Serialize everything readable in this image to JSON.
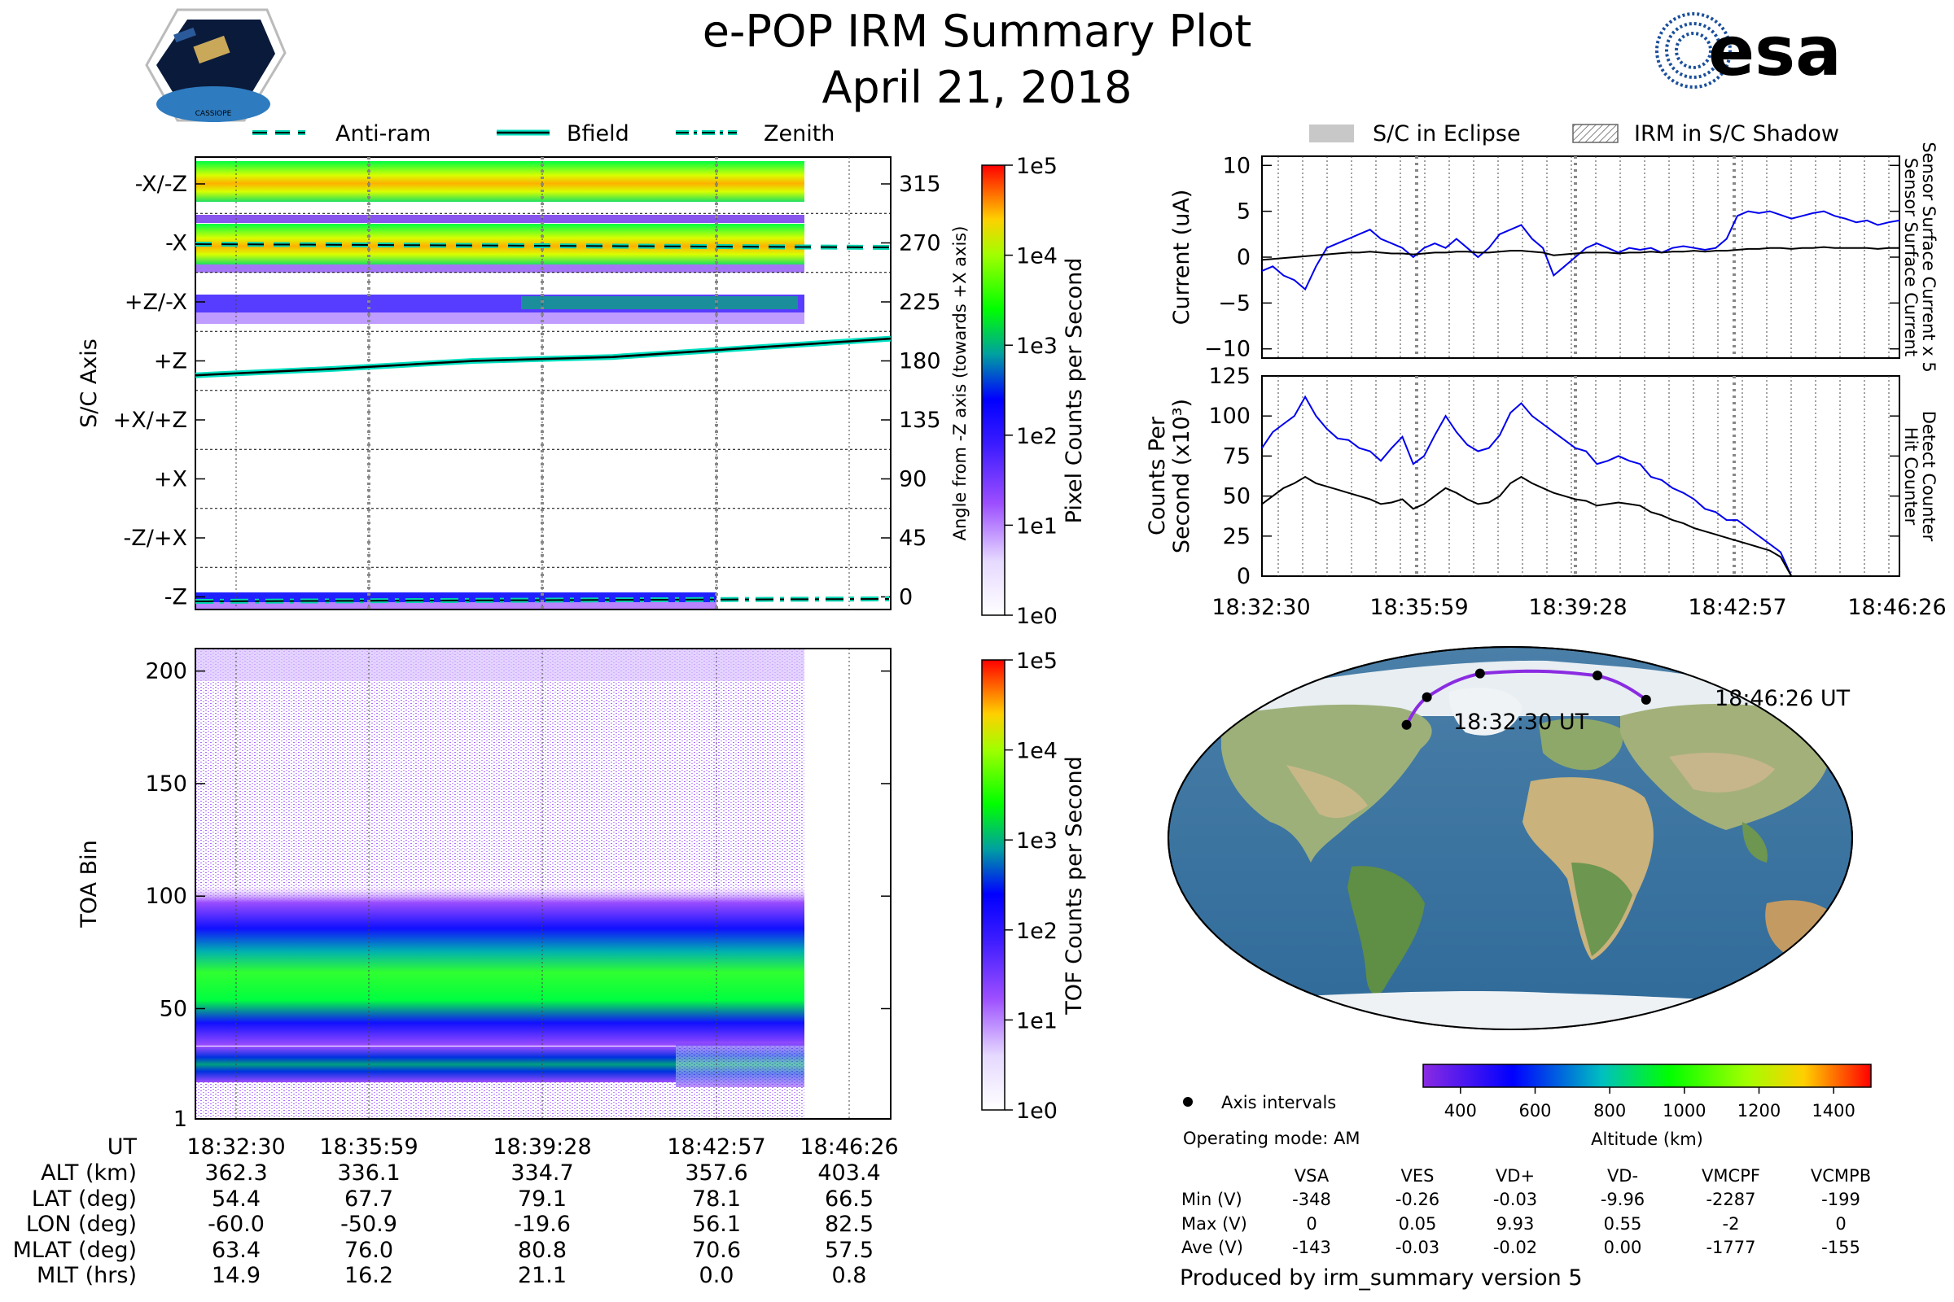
{
  "header": {
    "title": "e-POP IRM Summary Plot",
    "date": "April 21, 2018",
    "left_logo_text": "CASSIOPE",
    "right_logo_text": "esa"
  },
  "colors": {
    "anti_ram": "#00d4b0",
    "bfield_outline": "#00e0c0",
    "zenith": "#00d4b0",
    "blue_line": "#0000ee",
    "black_line": "#000000",
    "track": "#8a2be2",
    "label_blue": "#0000cc"
  },
  "chart_data": [
    {
      "id": "sc_axis_spectrogram",
      "type": "heatmap",
      "legend": [
        {
          "label": "Anti-ram",
          "style": "dashed"
        },
        {
          "label": "Bfield",
          "style": "solid"
        },
        {
          "label": "Zenith",
          "style": "dashdot"
        }
      ],
      "ylabel": "S/C Axis",
      "y2label": "Angle from -Z axis (towards +X axis)",
      "y_categories": [
        "-X/-Z",
        "-X",
        "+Z/-X",
        "+Z",
        "+X/+Z",
        "+X",
        "-Z/+X",
        "-Z"
      ],
      "y2_ticks": [
        "315",
        "270",
        "225",
        "180",
        "135",
        "90",
        "45",
        "0"
      ],
      "y2_range": [
        0,
        345
      ],
      "x_tick_count": 5,
      "bfield_angle_deg": [
        169,
        174,
        180,
        183,
        190,
        197
      ],
      "anti_ram_angle_deg": 267,
      "zenith_angle_deg": 0,
      "colorbar": {
        "label": "Pixel Counts per Second",
        "ticks": [
          "1e5",
          "1e4",
          "1e3",
          "1e2",
          "1e1",
          "1e0"
        ]
      }
    },
    {
      "id": "toa_spectrogram",
      "type": "heatmap",
      "ylabel": "TOA Bin",
      "y_ticks": [
        "200",
        "150",
        "100",
        "50",
        "1"
      ],
      "y_range": [
        1,
        210
      ],
      "bands": [
        {
          "name": "main",
          "center": 65,
          "width": 30
        },
        {
          "name": "low",
          "center": 25,
          "width": 10
        }
      ],
      "colorbar": {
        "label": "TOF Counts per Second",
        "ticks": [
          "1e5",
          "1e4",
          "1e3",
          "1e2",
          "1e1",
          "1e0"
        ]
      }
    },
    {
      "id": "sensor_current",
      "type": "line",
      "legend": [
        {
          "label": "S/C in Eclipse",
          "style": "solid-fill"
        },
        {
          "label": "IRM in S/C Shadow",
          "style": "hatched"
        }
      ],
      "ylabel": "Current (uA)",
      "ylim": [
        -11,
        11
      ],
      "y_ticks": [
        "10",
        "5",
        "0",
        "−5",
        "−10"
      ],
      "right_label_blue": "Sensor Surface Current x 5",
      "right_label_black": "Sensor Surface Current",
      "series": [
        {
          "name": "Sensor Surface Current x 5",
          "color": "blue",
          "values": [
            -1.5,
            -1,
            -2,
            -2.5,
            -3.5,
            -1,
            1,
            1.5,
            2,
            2.5,
            3,
            2,
            1.5,
            1,
            0,
            1,
            1.5,
            1,
            2,
            1,
            0,
            1,
            2.5,
            3,
            3.5,
            2,
            1,
            -2,
            -1,
            0,
            1,
            1.5,
            1,
            0.5,
            1,
            0.8,
            1,
            0.5,
            1,
            1.2,
            1,
            0.8,
            1,
            2,
            4.5,
            5,
            4.8,
            5,
            4.6,
            4.2,
            4.5,
            4.8,
            5,
            4.5,
            4.2,
            3.8,
            4,
            3.5,
            3.8,
            4
          ]
        },
        {
          "name": "Sensor Surface Current",
          "color": "black",
          "values": [
            -0.3,
            -0.2,
            -0.1,
            0,
            0.1,
            0.2,
            0.3,
            0.4,
            0.5,
            0.5,
            0.6,
            0.5,
            0.4,
            0.4,
            0.3,
            0.4,
            0.5,
            0.5,
            0.6,
            0.6,
            0.5,
            0.5,
            0.6,
            0.7,
            0.7,
            0.6,
            0.5,
            0.2,
            0.3,
            0.4,
            0.5,
            0.5,
            0.5,
            0.4,
            0.5,
            0.5,
            0.6,
            0.5,
            0.6,
            0.6,
            0.7,
            0.6,
            0.7,
            0.7,
            0.8,
            0.9,
            0.9,
            1,
            1,
            0.9,
            1,
            1,
            1.1,
            1,
            1,
            1,
            1,
            0.9,
            1,
            1
          ]
        }
      ]
    },
    {
      "id": "detector_counts",
      "type": "line",
      "ylabel": "Counts Per Second (x10³)",
      "ylabel_line1": "Counts Per",
      "ylabel_line2": "Second (x10³)",
      "ylim": [
        0,
        125
      ],
      "y_ticks": [
        "125",
        "100",
        "75",
        "50",
        "25",
        "0"
      ],
      "right_label_blue": "Detect Counter",
      "right_label_black": "Hit Counter",
      "x_ticks": [
        "18:32:30",
        "18:35:59",
        "18:39:28",
        "18:42:57",
        "18:46:26"
      ],
      "series": [
        {
          "name": "Detect Counter",
          "color": "blue",
          "values": [
            80,
            90,
            95,
            100,
            112,
            100,
            92,
            86,
            85,
            80,
            78,
            72,
            80,
            87,
            70,
            75,
            88,
            100,
            90,
            82,
            78,
            80,
            88,
            102,
            108,
            100,
            95,
            90,
            85,
            80,
            78,
            70,
            72,
            75,
            72,
            70,
            62,
            60,
            55,
            52,
            48,
            42,
            40,
            35,
            35,
            30,
            25,
            20,
            15,
            0,
            0,
            0,
            0,
            0,
            0,
            0,
            0,
            0,
            0,
            0
          ]
        },
        {
          "name": "Hit Counter",
          "color": "black",
          "values": [
            45,
            50,
            55,
            58,
            62,
            58,
            56,
            54,
            52,
            50,
            48,
            45,
            46,
            48,
            42,
            45,
            50,
            55,
            52,
            48,
            45,
            46,
            50,
            58,
            62,
            58,
            55,
            52,
            50,
            48,
            47,
            44,
            45,
            46,
            45,
            44,
            40,
            38,
            35,
            33,
            30,
            28,
            26,
            24,
            22,
            20,
            18,
            16,
            12,
            0,
            0,
            0,
            0,
            0,
            0,
            0,
            0,
            0,
            0,
            0
          ]
        }
      ]
    },
    {
      "id": "orbit_map",
      "type": "scatter",
      "start_label": "18:32:30 UT",
      "end_label": "18:46:26 UT",
      "track_lonlat": [
        [
          -60.0,
          54.4
        ],
        [
          -50.9,
          67.7
        ],
        [
          -19.6,
          79.1
        ],
        [
          56.1,
          78.1
        ],
        [
          82.5,
          66.5
        ]
      ],
      "legend_label": "Axis intervals",
      "operating_mode": "Operating mode: AM",
      "altitude_bar": {
        "label": "Altitude (km)",
        "ticks": [
          "400",
          "600",
          "800",
          "1000",
          "1200",
          "1400"
        ],
        "range": [
          300,
          1500
        ]
      }
    }
  ],
  "ut_table": {
    "rows": [
      {
        "label": "UT",
        "values": [
          "18:32:30",
          "18:35:59",
          "18:39:28",
          "18:42:57",
          "18:46:26"
        ]
      },
      {
        "label": "ALT (km)",
        "values": [
          "362.3",
          "336.1",
          "334.7",
          "357.6",
          "403.4"
        ]
      },
      {
        "label": "LAT (deg)",
        "values": [
          "54.4",
          "67.7",
          "79.1",
          "78.1",
          "66.5"
        ]
      },
      {
        "label": "LON (deg)",
        "values": [
          "-60.0",
          "-50.9",
          "-19.6",
          "56.1",
          "82.5"
        ]
      },
      {
        "label": "MLAT (deg)",
        "values": [
          "63.4",
          "76.0",
          "80.8",
          "70.6",
          "57.5"
        ]
      },
      {
        "label": "MLT (hrs)",
        "values": [
          "14.9",
          "16.2",
          "21.1",
          "0.0",
          "0.8"
        ]
      }
    ]
  },
  "voltage_table": {
    "headers": [
      "VSA",
      "VES",
      "VD+",
      "VD-",
      "VMCPF",
      "VCMPB"
    ],
    "rows": [
      {
        "label": "Min (V)",
        "values": [
          "-348",
          "-0.26",
          "-0.03",
          "-9.96",
          "-2287",
          "-199"
        ]
      },
      {
        "label": "Max (V)",
        "values": [
          "0",
          "0.05",
          "9.93",
          "0.55",
          "-2",
          "0"
        ]
      },
      {
        "label": "Ave (V)",
        "values": [
          "-143",
          "-0.03",
          "-0.02",
          "0.00",
          "-1777",
          "-155"
        ]
      }
    ]
  },
  "footer": {
    "produced_by": "Produced by irm_summary version 5"
  }
}
